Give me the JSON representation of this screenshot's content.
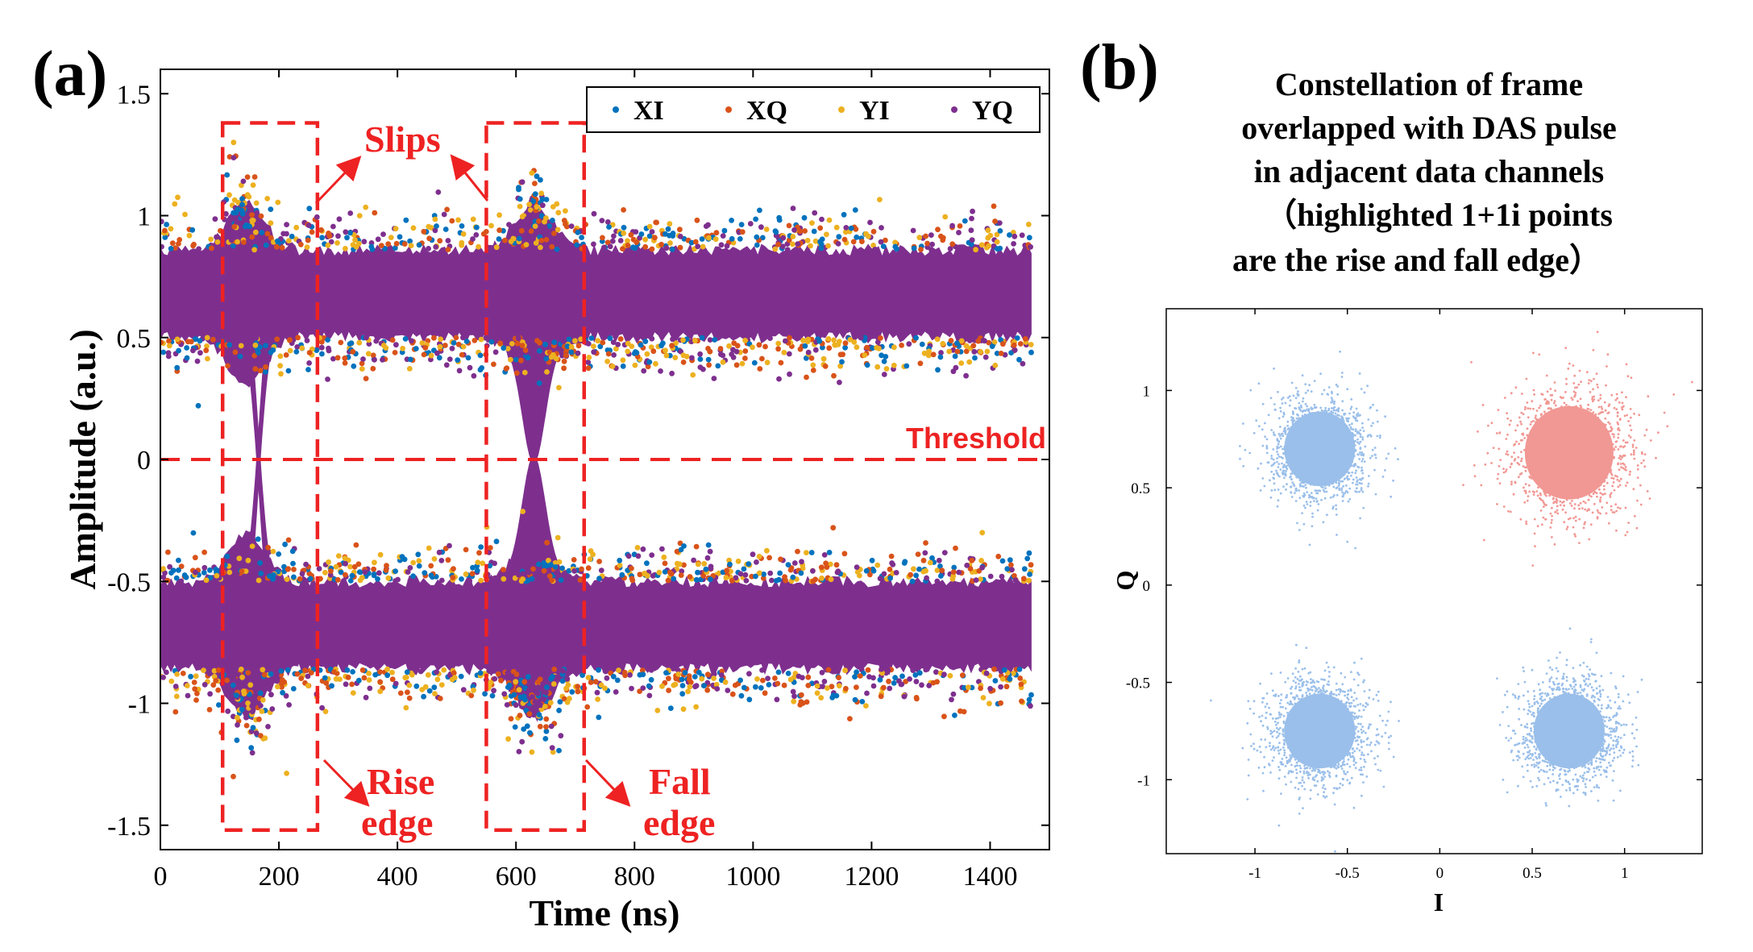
{
  "chart_data": [
    {
      "panel": "(a)",
      "type": "scatter",
      "xlabel": "Time (ns)",
      "ylabel": "Amplitude (a.u.)",
      "xlim": [
        0,
        1500
      ],
      "ylim": [
        -1.6,
        1.6
      ],
      "x_ticks": [
        0,
        200,
        400,
        600,
        800,
        1000,
        1200,
        1400
      ],
      "y_ticks": [
        -1.5,
        -1,
        -0.5,
        0,
        0.5,
        1,
        1.5
      ],
      "x_tick_labels": [
        "0",
        "200",
        "400",
        "600",
        "800",
        "1000",
        "1200",
        "1400"
      ],
      "y_tick_labels": [
        "-1.5",
        "-1",
        "-0.5",
        "0",
        "0.5",
        "1",
        "1.5"
      ],
      "legend": [
        {
          "name": "XI",
          "color": "#0072BD"
        },
        {
          "name": "XQ",
          "color": "#D95319"
        },
        {
          "name": "YI",
          "color": "#EDB120"
        },
        {
          "name": "YQ",
          "color": "#7E2F8E"
        }
      ],
      "legend_position": "top-right",
      "data_x_range": [
        0,
        1470
      ],
      "upper_band": {
        "center": 0.68,
        "core_halfwidth": 0.18,
        "outlier_range": [
          0.35,
          1.08
        ]
      },
      "lower_band": {
        "center": -0.68,
        "core_halfwidth": 0.18,
        "outlier_range": [
          -1.08,
          -0.35
        ]
      },
      "transitions": [
        {
          "name": "rise",
          "start": 125,
          "end": 215,
          "peak_time": 145,
          "overshoot": 1.3
        },
        {
          "name": "fall",
          "start": 590,
          "end": 680,
          "peak_time": 630,
          "overshoot": 1.2
        }
      ],
      "threshold": {
        "value": 0,
        "label": "Threshold"
      },
      "boxes": [
        {
          "x": [
            105,
            265
          ],
          "y": [
            -1.52,
            1.38
          ]
        },
        {
          "x": [
            550,
            715
          ],
          "y": [
            -1.52,
            1.38
          ]
        }
      ],
      "annotations": {
        "slips": "Slips",
        "rise_line1": "Rise",
        "rise_line2": "edge",
        "fall_line1": "Fall",
        "fall_line2": "edge"
      },
      "annotation_color": "#ee2222"
    },
    {
      "panel": "(b)",
      "type": "scatter",
      "title_lines": [
        "Constellation of frame",
        "overlapped with DAS pulse",
        "in adjacent data channels",
        "（highlighted 1+1i points",
        "are the rise and fall edge）"
      ],
      "xlabel": "I",
      "ylabel": "Q",
      "xlim": [
        -1.48,
        1.42
      ],
      "ylim": [
        -1.38,
        1.42
      ],
      "x_ticks": [
        -1,
        -0.5,
        0,
        0.5,
        1
      ],
      "y_ticks": [
        -1,
        -0.5,
        0,
        0.5,
        1
      ],
      "x_tick_labels": [
        "-1",
        "-0.5",
        "0",
        "0.5",
        "1"
      ],
      "y_tick_labels": [
        "-1",
        "-0.5",
        "0",
        "0.5",
        "1"
      ],
      "clusters": [
        {
          "name": "-1+1i",
          "center": [
            -0.65,
            0.7
          ],
          "spread": 0.12,
          "color": "#9ABFEA"
        },
        {
          "name": "1+1i (highlighted)",
          "center": [
            0.7,
            0.68
          ],
          "spread": 0.15,
          "color": "#F19894"
        },
        {
          "name": "-1-1i",
          "center": [
            -0.65,
            -0.75
          ],
          "spread": 0.12,
          "color": "#9ABFEA"
        },
        {
          "name": "1-1i",
          "center": [
            0.7,
            -0.75
          ],
          "spread": 0.12,
          "color": "#9ABFEA"
        }
      ]
    }
  ]
}
